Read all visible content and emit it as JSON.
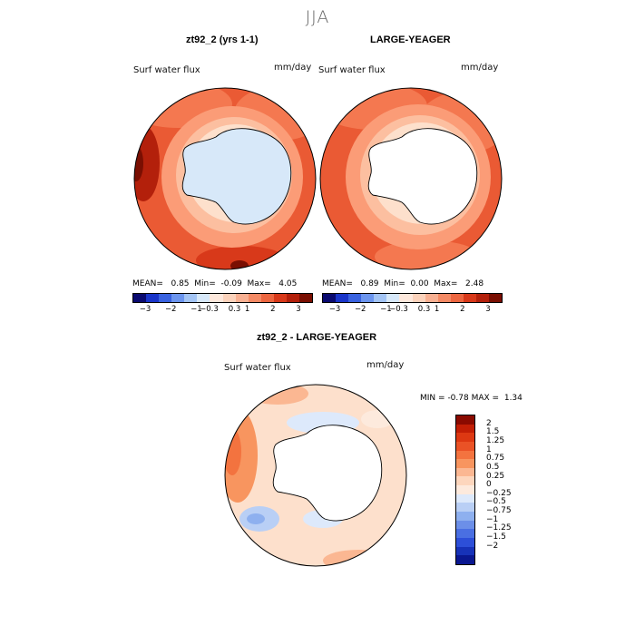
{
  "figure": {
    "season": "JJA",
    "variable": "Surf water flux",
    "units": "mm/day"
  },
  "colors": {
    "pos_scale": [
      "#fde0cc",
      "#fcbfa0",
      "#fb9c77",
      "#f47850",
      "#ea5a34",
      "#d8391a",
      "#b3200b",
      "#7a0f02"
    ],
    "neg_scale": [
      "#dce9fa",
      "#b8d0f5",
      "#8fb1ef",
      "#6a94ea",
      "#4675e4",
      "#2450d8",
      "#0d2ec2",
      "#0a1a8a"
    ],
    "land_light_blue": "#d7e8f9",
    "land_white": "#ffffff"
  },
  "chart_data": [
    {
      "type": "heatmap",
      "projection": "south-polar-stereographic",
      "title": "zt92_2 (yrs 1-1)",
      "subtitle": "Surf water flux",
      "units": "mm/day",
      "stats": {
        "mean_label": "MEAN=",
        "mean": "0.85",
        "min_label": "Min=",
        "min": "-0.09",
        "max_label": "Max=",
        "max": "4.05"
      },
      "colorbar_ticks": [
        "-3",
        "-2",
        "-1",
        "-0.3",
        "0.3",
        "1",
        "2",
        "3"
      ],
      "colorbar_colors": [
        "#0a0a70",
        "#1a35c9",
        "#3a63e0",
        "#6c95ee",
        "#a3c4f4",
        "#d7e8f9",
        "#fde8dc",
        "#fbd2bb",
        "#f8b092",
        "#f48a65",
        "#ec6640",
        "#d8391a",
        "#b3200b",
        "#7a0f02"
      ]
    },
    {
      "type": "heatmap",
      "projection": "south-polar-stereographic",
      "title": "LARGE-YEAGER",
      "subtitle": "Surf water flux",
      "units": "mm/day",
      "stats": {
        "mean_label": "MEAN=",
        "mean": "0.89",
        "min_label": "Min=",
        "min": "0.00",
        "max_label": "Max=",
        "max": "2.48"
      },
      "colorbar_ticks": [
        "-3",
        "-2",
        "-1",
        "-0.3",
        "0.3",
        "1",
        "2",
        "3"
      ],
      "colorbar_colors": [
        "#0a0a70",
        "#1a35c9",
        "#3a63e0",
        "#6c95ee",
        "#a3c4f4",
        "#d7e8f9",
        "#fde8dc",
        "#fbd2bb",
        "#f8b092",
        "#f48a65",
        "#ec6640",
        "#d8391a",
        "#b3200b",
        "#7a0f02"
      ]
    },
    {
      "type": "heatmap",
      "projection": "south-polar-stereographic",
      "title": "zt92_2 - LARGE-YEAGER",
      "subtitle": "Surf water flux",
      "units": "mm/day",
      "stats": {
        "min_label": "MIN =",
        "min": "-0.78",
        "max_label": "MAX =",
        "max": "1.34"
      },
      "colorbar_ticks": [
        "2",
        "1.5",
        "1.25",
        "1",
        "0.75",
        "0.5",
        "0.25",
        "0",
        "-0.25",
        "-0.5",
        "-0.75",
        "-1",
        "-1.25",
        "-1.5",
        "-2"
      ],
      "colorbar_colors": [
        "#8a0a00",
        "#c21e05",
        "#dd3812",
        "#ea5226",
        "#f3733f",
        "#f8955f",
        "#fbb792",
        "#fdd6bd",
        "#fdeadd",
        "#dde9fb",
        "#b9cff5",
        "#8eb0ef",
        "#6c8fe8",
        "#4a6fe2",
        "#2d4fd8",
        "#1732b8",
        "#0a1790"
      ]
    }
  ]
}
